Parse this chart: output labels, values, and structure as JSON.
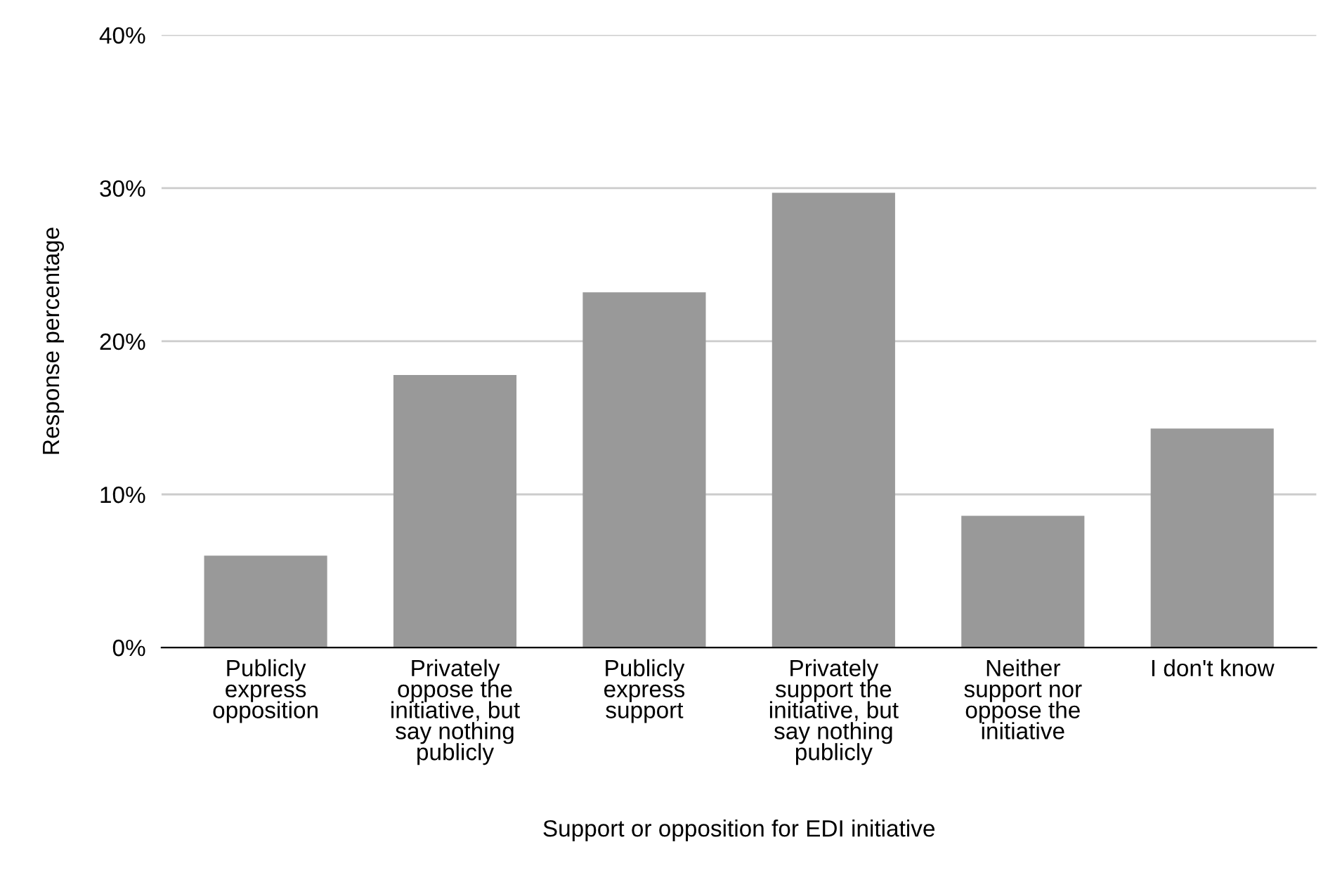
{
  "chart_data": {
    "type": "bar",
    "xlabel": "Support or opposition for EDI initiative",
    "ylabel": "Response percentage",
    "categories": [
      "Publicly\nexpress\nopposition",
      "Privately\noppose the\ninitiative, but\nsay nothing\npublicly",
      "Publicly\nexpress\nsupport",
      "Privately\nsupport the\ninitiative, but\nsay nothing\npublicly",
      "Neither\nsupport nor\noppose the\ninitiative",
      "I don't know"
    ],
    "values": [
      6.0,
      17.8,
      23.2,
      29.7,
      8.6,
      14.3
    ],
    "color": "#999999",
    "ylim": [
      0,
      40
    ],
    "yticks": [
      {
        "value": 0,
        "label": "0%"
      },
      {
        "value": 10,
        "label": "10%"
      },
      {
        "value": 20,
        "label": "20%"
      },
      {
        "value": 30,
        "label": "30%"
      },
      {
        "value": 40,
        "label": "40%"
      }
    ],
    "grid": "y"
  }
}
